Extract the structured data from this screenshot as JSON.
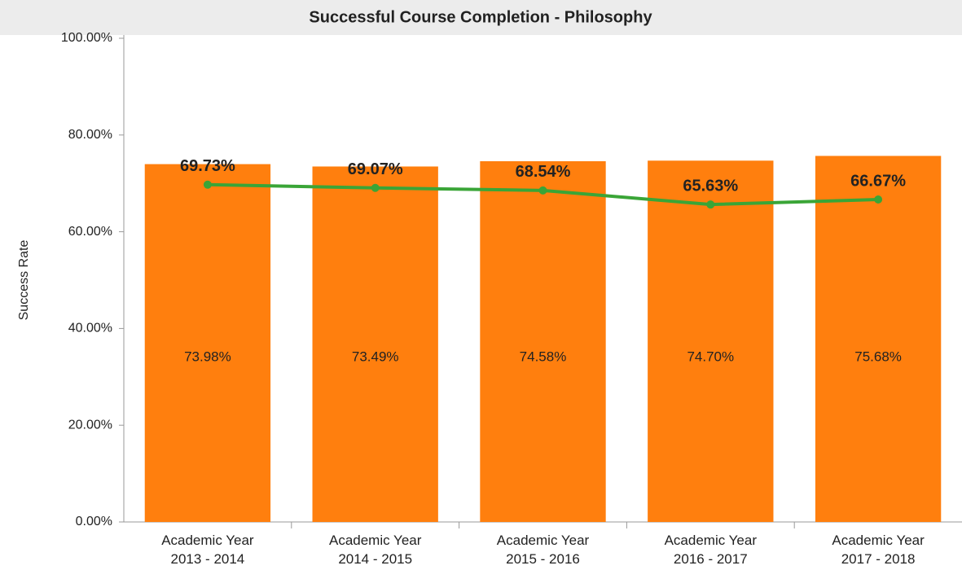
{
  "chart_data": {
    "type": "bar",
    "title": "Successful Course Completion - Philosophy",
    "y_label": "Success Rate",
    "categories": [
      "Academic Year\n2013 - 2014",
      "Academic Year\n2014 - 2015",
      "Academic Year\n2015 - 2016",
      "Academic Year\n2016 - 2017",
      "Academic Year\n2017 - 2018"
    ],
    "series": [
      {
        "type": "bar",
        "color": "#ff7f0e",
        "values": [
          73.98,
          73.49,
          74.58,
          74.7,
          75.68
        ],
        "value_labels": [
          "73.98%",
          "73.49%",
          "74.58%",
          "74.70%",
          "75.68%"
        ]
      },
      {
        "type": "line",
        "color": "#3aa537",
        "values": [
          69.73,
          69.07,
          68.54,
          65.63,
          66.67
        ],
        "value_labels": [
          "69.73%",
          "69.07%",
          "68.54%",
          "65.63%",
          "66.67%"
        ]
      }
    ],
    "ylim": [
      0,
      100
    ],
    "yticks": [
      {
        "value": 0,
        "label": "0.00%"
      },
      {
        "value": 20,
        "label": "20.00%"
      },
      {
        "value": 40,
        "label": "40.00%"
      },
      {
        "value": 60,
        "label": "60.00%"
      },
      {
        "value": 80,
        "label": "80.00%"
      },
      {
        "value": 100,
        "label": "100.00%"
      }
    ]
  }
}
